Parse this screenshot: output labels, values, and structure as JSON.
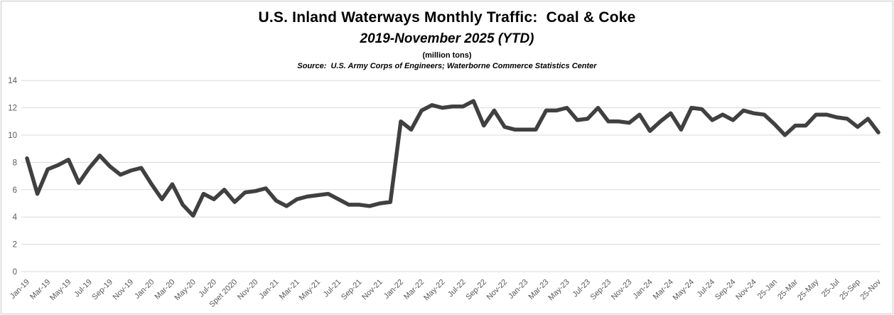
{
  "header": {
    "title": "U.S. Inland Waterways Monthly Traffic:  Coal & Coke",
    "subtitle": "2019-November 2025 (YTD)",
    "units_note": "(million tons)",
    "source_note": "Source:  U.S. Army Corps of Engineers; Waterborne Commerce Statistics Center"
  },
  "chart_data": {
    "type": "line",
    "title": "U.S. Inland Waterways Monthly Traffic:  Coal & Coke",
    "subtitle": "2019-November 2025 (YTD)",
    "units": "million tons",
    "source": "Source:  U.S. Army Corps of Engineers; Waterborne Commerce Statistics Center",
    "xlabel": "",
    "ylabel": "",
    "ylim": [
      0,
      14
    ],
    "ytick_step": 2,
    "y_tick_labels": [
      "0",
      "2",
      "4",
      "6",
      "8",
      "10",
      "12",
      "14"
    ],
    "grid": "horizontal",
    "legend_position": "none",
    "x_tick_every": 2,
    "x_tick_labels": [
      "Jan-19",
      "Mar-19",
      "May-19",
      "Jul-19",
      "Sep-19",
      "Nov-19",
      "Jan-20",
      "Mar-20",
      "May-20",
      "Jul-20",
      "Spet 2020",
      "Nov-20",
      "Jan-21",
      "Mar-21",
      "May-21",
      "Jul-21",
      "Sep-21",
      "Nov-21",
      "Jan-22",
      "Mar-22",
      "May-22",
      "Jul-22",
      "Sep-22",
      "Nov-22",
      "Jan-23",
      "Mar-23",
      "May-23",
      "Jul-23",
      "Sep-23",
      "Nov-23",
      "Jan-24",
      "Mar-24",
      "May-24",
      "Jul-24",
      "Sep-24",
      "Nov-24",
      "25-Jan",
      "25-Mar",
      "25-May",
      "25-Jul",
      "25-Sep",
      "25-Nov"
    ],
    "months": [
      "Jan-19",
      "Feb-19",
      "Mar-19",
      "Apr-19",
      "May-19",
      "Jun-19",
      "Jul-19",
      "Aug-19",
      "Sep-19",
      "Oct-19",
      "Nov-19",
      "Dec-19",
      "Jan-20",
      "Feb-20",
      "Mar-20",
      "Apr-20",
      "May-20",
      "Jun-20",
      "Jul-20",
      "Aug-20",
      "Sep-20",
      "Oct-20",
      "Nov-20",
      "Dec-20",
      "Jan-21",
      "Feb-21",
      "Mar-21",
      "Apr-21",
      "May-21",
      "Jun-21",
      "Jul-21",
      "Aug-21",
      "Sep-21",
      "Oct-21",
      "Nov-21",
      "Dec-21",
      "Jan-22",
      "Feb-22",
      "Mar-22",
      "Apr-22",
      "May-22",
      "Jun-22",
      "Jul-22",
      "Aug-22",
      "Sep-22",
      "Oct-22",
      "Nov-22",
      "Dec-22",
      "Jan-23",
      "Feb-23",
      "Mar-23",
      "Apr-23",
      "May-23",
      "Jun-23",
      "Jul-23",
      "Aug-23",
      "Sep-23",
      "Oct-23",
      "Nov-23",
      "Dec-23",
      "Jan-24",
      "Feb-24",
      "Mar-24",
      "Apr-24",
      "May-24",
      "Jun-24",
      "Jul-24",
      "Aug-24",
      "Sep-24",
      "Oct-24",
      "Nov-24",
      "Dec-24",
      "Jan-25",
      "Feb-25",
      "Mar-25",
      "Apr-25",
      "May-25",
      "Jun-25",
      "Jul-25",
      "Aug-25",
      "Sep-25",
      "Oct-25",
      "Nov-25"
    ],
    "series": [
      {
        "name": "Coal & Coke",
        "values": [
          8.3,
          5.7,
          7.5,
          7.8,
          8.2,
          6.5,
          7.6,
          8.5,
          7.7,
          7.1,
          7.4,
          7.6,
          6.4,
          5.3,
          6.4,
          4.9,
          4.1,
          5.7,
          5.3,
          6.0,
          5.1,
          5.8,
          5.9,
          6.1,
          5.2,
          4.8,
          5.3,
          5.5,
          5.6,
          5.7,
          5.3,
          4.9,
          4.9,
          4.8,
          5.0,
          5.1,
          11.0,
          10.4,
          11.8,
          12.2,
          12.0,
          12.1,
          12.1,
          12.5,
          10.7,
          11.8,
          10.6,
          10.4,
          10.4,
          10.4,
          11.8,
          11.8,
          12.0,
          11.1,
          11.2,
          12.0,
          11.0,
          11.0,
          10.9,
          11.5,
          10.3,
          11.0,
          11.6,
          10.4,
          12.0,
          11.9,
          11.1,
          11.5,
          11.1,
          11.8,
          11.6,
          11.5,
          10.8,
          10.0,
          10.7,
          10.7,
          11.5,
          11.5,
          11.3,
          11.2,
          10.6,
          11.2,
          10.2
        ]
      }
    ],
    "colors": {
      "line": "#404040",
      "grid": "#d9d9d9",
      "tick_label": "#595959",
      "title": "#000000",
      "frame_border": "#c9c9c9",
      "background": "#ffffff"
    }
  }
}
